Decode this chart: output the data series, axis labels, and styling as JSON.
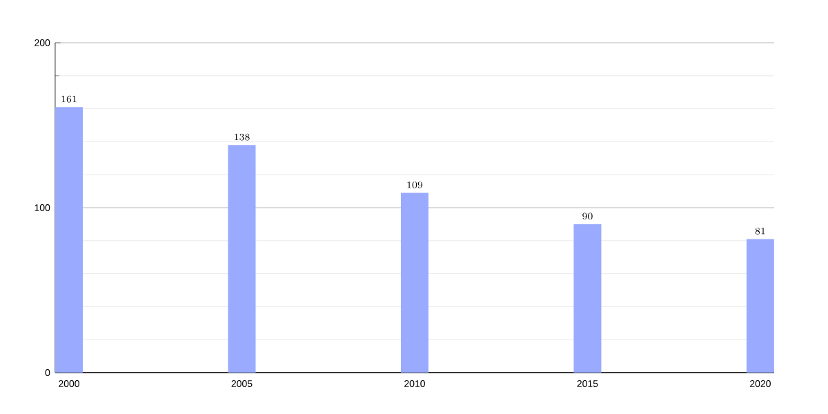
{
  "chart_data": {
    "type": "bar",
    "categories": [
      "2000",
      "2005",
      "2010",
      "2015",
      "2020"
    ],
    "values": [
      161,
      138,
      109,
      90,
      81
    ],
    "color": "#99aaff",
    "ylim": [
      0,
      200
    ],
    "yticks": [
      0,
      100,
      200
    ],
    "grid": "y",
    "data_labels": true
  }
}
